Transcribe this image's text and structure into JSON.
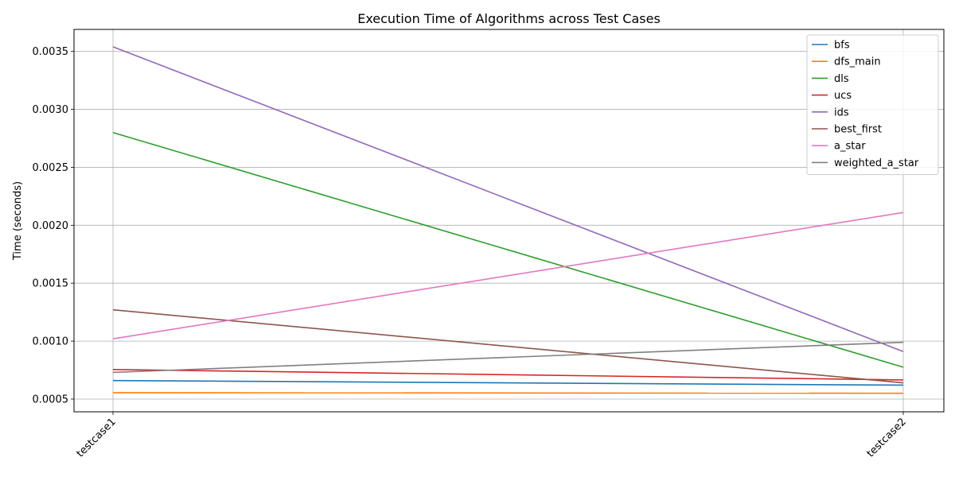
{
  "chart_data": {
    "type": "line",
    "title": "Execution Time of Algorithms across Test Cases",
    "xlabel": "",
    "ylabel": "Time (seconds)",
    "categories": [
      "testcase1",
      "testcase2"
    ],
    "ylim": [
      0.00039,
      0.00369
    ],
    "yticks": [
      "0.0005",
      "0.0010",
      "0.0015",
      "0.0020",
      "0.0025",
      "0.0030",
      "0.0035"
    ],
    "grid": true,
    "legend_position": "top-right",
    "series": [
      {
        "name": "bfs",
        "color": "#1f77b4",
        "values": [
          0.00066,
          0.00062
        ]
      },
      {
        "name": "dfs_main",
        "color": "#ff7f0e",
        "values": [
          0.000555,
          0.00055
        ]
      },
      {
        "name": "dls",
        "color": "#2ca02c",
        "values": [
          0.0028,
          0.000775
        ]
      },
      {
        "name": "ucs",
        "color": "#d62728",
        "values": [
          0.000755,
          0.000665
        ]
      },
      {
        "name": "ids",
        "color": "#9467bd",
        "values": [
          0.00354,
          0.00091
        ]
      },
      {
        "name": "best_first",
        "color": "#8c564b",
        "values": [
          0.00127,
          0.00064
        ]
      },
      {
        "name": "a_star",
        "color": "#e377c2",
        "values": [
          0.00102,
          0.00211
        ]
      },
      {
        "name": "weighted_a_star",
        "color": "#7f7f7f",
        "values": [
          0.00073,
          0.00099
        ]
      }
    ]
  }
}
